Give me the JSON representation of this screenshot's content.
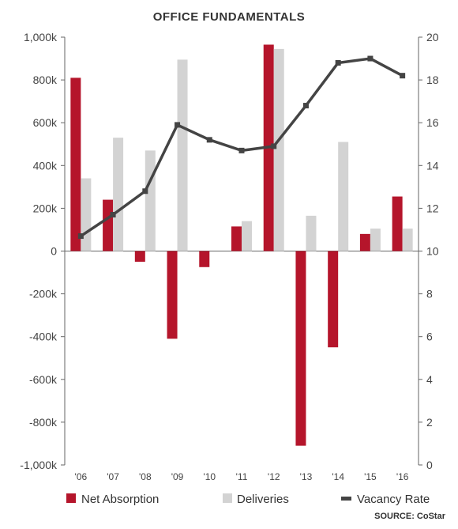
{
  "chart_data": {
    "type": "bar",
    "title": "OFFICE FUNDAMENTALS",
    "source": "SOURCE: CoStar",
    "categories": [
      "'06",
      "'07",
      "'08",
      "'09",
      "'10",
      "'11",
      "'12",
      "'13",
      "'14",
      "'15",
      "'16"
    ],
    "series": [
      {
        "name": "Net Absorption",
        "kind": "bar",
        "axis": "left",
        "color": "#b5152b",
        "values": [
          810000,
          240000,
          -50000,
          -410000,
          -75000,
          115000,
          965000,
          -910000,
          -450000,
          80000,
          255000
        ]
      },
      {
        "name": "Deliveries",
        "kind": "bar",
        "axis": "left",
        "color": "#d3d3d3",
        "values": [
          340000,
          530000,
          470000,
          895000,
          0,
          140000,
          945000,
          165000,
          510000,
          105000,
          105000
        ]
      },
      {
        "name": "Vacancy Rate",
        "kind": "line",
        "axis": "right",
        "color": "#444444",
        "values": [
          10.7,
          11.7,
          12.8,
          15.9,
          15.2,
          14.7,
          14.9,
          16.8,
          18.8,
          19.0,
          18.2
        ]
      }
    ],
    "left_axis": {
      "min": -1000000,
      "max": 1000000,
      "step": 200000,
      "tick_labels": [
        "-1,000k",
        "-800k",
        "-600k",
        "-400k",
        "-200k",
        "0",
        "200k",
        "400k",
        "600k",
        "800k",
        "1,000k"
      ]
    },
    "right_axis": {
      "min": 0,
      "max": 20,
      "step": 2,
      "tick_labels": [
        "0",
        "2",
        "4",
        "6",
        "8",
        "10",
        "12",
        "14",
        "16",
        "18",
        "20"
      ]
    },
    "grid": false,
    "legend_position": "bottom"
  }
}
